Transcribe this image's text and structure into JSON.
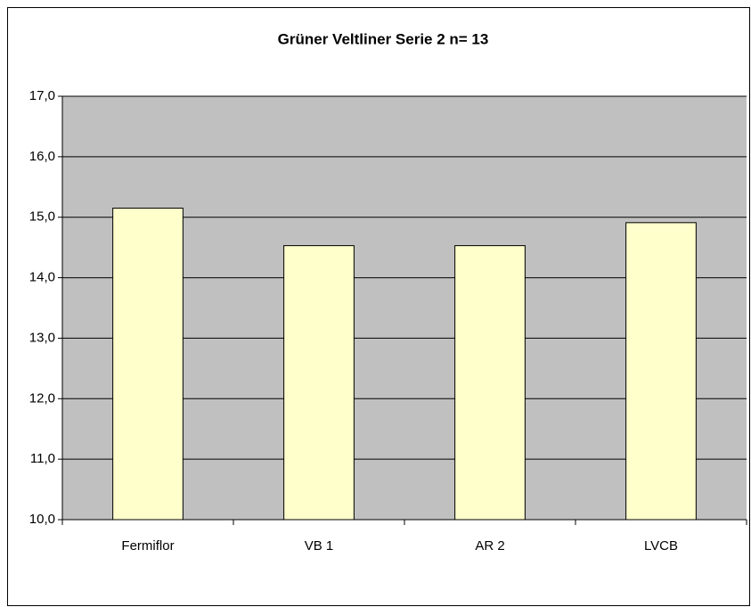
{
  "chart_data": {
    "type": "bar",
    "title": "Grüner Veltliner Serie 2 n= 13",
    "categories": [
      "Fermiflor",
      "VB 1",
      "AR 2",
      "LVCB"
    ],
    "values": [
      15.15,
      14.53,
      14.53,
      14.91
    ],
    "color": "#ffffcc",
    "ylim": [
      10,
      17
    ],
    "yticks": [
      {
        "value": 10,
        "label": "10,0"
      },
      {
        "value": 11,
        "label": "11,0"
      },
      {
        "value": 12,
        "label": "12,0"
      },
      {
        "value": 13,
        "label": "13,0"
      },
      {
        "value": 14,
        "label": "14,0"
      },
      {
        "value": 15,
        "label": "15,0"
      },
      {
        "value": 16,
        "label": "16,0"
      },
      {
        "value": 17,
        "label": "17,0"
      }
    ],
    "grid": true
  }
}
